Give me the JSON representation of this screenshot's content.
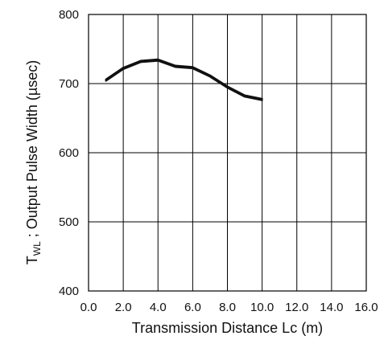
{
  "chart_data": {
    "type": "line",
    "xlabel": "Transmission Distance Lc (m)",
    "ylabel_main": "T",
    "ylabel_sub": "WL",
    "ylabel_rest": " ; Output Pulse Width (µsec)",
    "xlim": [
      0,
      16
    ],
    "ylim": [
      400,
      800
    ],
    "x_ticks": [
      0,
      2,
      4,
      6,
      8,
      10,
      12,
      14,
      16
    ],
    "x_tick_labels": [
      "0.0",
      "2.0",
      "4.0",
      "6.0",
      "8.0",
      "10.0",
      "12.0",
      "14.0",
      "16.0"
    ],
    "y_ticks": [
      400,
      500,
      600,
      700,
      800
    ],
    "y_tick_labels": [
      "400",
      "500",
      "600",
      "700",
      "800"
    ],
    "grid": true,
    "series": [
      {
        "x": [
          1,
          2,
          3,
          4,
          5,
          6,
          7,
          8,
          9,
          10
        ],
        "y": [
          706,
          723,
          733,
          735,
          726,
          724,
          712,
          696,
          683,
          678
        ]
      },
      {
        "x": [
          1,
          2,
          3,
          4,
          5,
          6,
          7,
          8,
          9,
          10
        ],
        "y": [
          704,
          721,
          731,
          733,
          724,
          722,
          710,
          694,
          681,
          676
        ]
      }
    ],
    "line_color": "#111111"
  }
}
